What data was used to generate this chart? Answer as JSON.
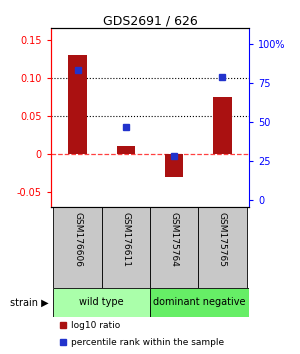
{
  "title": "GDS2691 / 626",
  "samples": [
    "GSM176606",
    "GSM176611",
    "GSM175764",
    "GSM175765"
  ],
  "log10_ratio": [
    0.13,
    0.01,
    -0.03,
    0.075
  ],
  "percentile_rank": [
    83,
    47,
    28,
    79
  ],
  "bar_color": "#aa1111",
  "dot_color": "#2233cc",
  "ylim_left": [
    -0.07,
    0.165
  ],
  "ylim_right": [
    -4.67,
    110
  ],
  "yticks_left": [
    -0.05,
    0.0,
    0.05,
    0.1,
    0.15
  ],
  "ytick_labels_left": [
    "-0.05",
    "0",
    "0.05",
    "0.10",
    "0.15"
  ],
  "yticks_right": [
    0,
    25,
    50,
    75,
    100
  ],
  "ytick_labels_right": [
    "0",
    "25",
    "50",
    "75",
    "100%"
  ],
  "hlines": [
    0.05,
    0.1
  ],
  "group_labels": [
    "wild type",
    "dominant negative"
  ],
  "group_colors": [
    "#aaffaa",
    "#66ee66"
  ],
  "legend_items": [
    {
      "color": "#aa1111",
      "label": "log10 ratio"
    },
    {
      "color": "#2233cc",
      "label": "percentile rank within the sample"
    }
  ]
}
